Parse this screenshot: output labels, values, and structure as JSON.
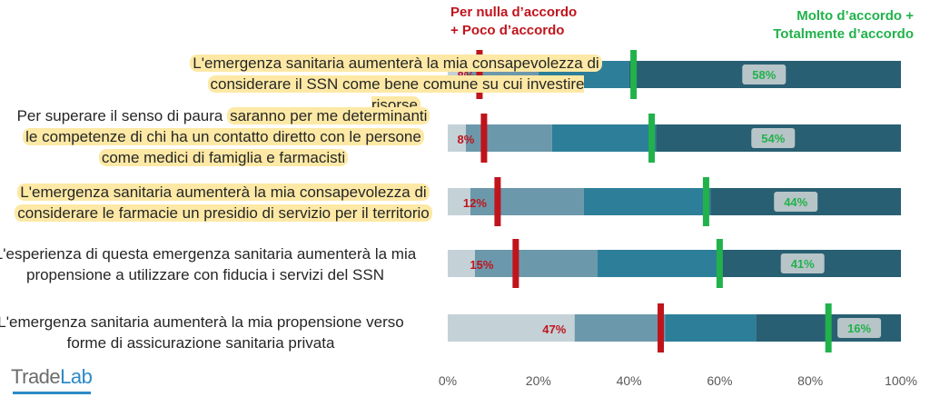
{
  "chart_data": {
    "type": "bar",
    "orientation": "horizontal",
    "stacked": true,
    "statements": [
      {
        "segments": [
          {
            "text": "L'emergenza sanitaria aumenterà la mia consapevolezza di",
            "highlight": true
          },
          {
            "text": "considerare il SSN come bene comune su cui investire risorse",
            "highlight": true
          }
        ],
        "disagree_pct": 8,
        "agree_pct": 58,
        "disagree_label": "8%",
        "agree_label": "58%",
        "stack": [
          4,
          16,
          20,
          60
        ],
        "red_marker": 7,
        "green_marker": 41
      },
      {
        "segments": [
          {
            "text": "Per superare il senso di paura",
            "highlight": false,
            "join": " "
          },
          {
            "text": "saranno per me determinanti",
            "highlight": true
          },
          {
            "text": "le competenze di chi ha un contatto diretto con le persone",
            "highlight": true
          },
          {
            "text": "come medici di famiglia e farmacisti",
            "highlight": true
          }
        ],
        "disagree_pct": 8,
        "agree_pct": 54,
        "disagree_label": "8%",
        "agree_label": "54%",
        "stack": [
          4,
          19,
          23,
          54
        ],
        "red_marker": 8,
        "green_marker": 45
      },
      {
        "segments": [
          {
            "text": "L'emergenza sanitaria aumenterà la mia consapevolezza di",
            "highlight": true
          },
          {
            "text": "considerare le farmacie un presidio di servizio per il territorio",
            "highlight": true
          }
        ],
        "disagree_pct": 12,
        "agree_pct": 44,
        "disagree_label": "12%",
        "agree_label": "44%",
        "stack": [
          5,
          25,
          28,
          42
        ],
        "red_marker": 11,
        "green_marker": 57
      },
      {
        "segments": [
          {
            "text": "L'esperienza di questa emergenza sanitaria aumenterà la mia",
            "highlight": false
          },
          {
            "text": "propensione a utilizzare con fiducia  i servizi del SSN",
            "highlight": false
          }
        ],
        "disagree_pct": 15,
        "agree_pct": 41,
        "disagree_label": "15%",
        "agree_label": "41%",
        "stack": [
          6,
          27,
          27,
          40
        ],
        "red_marker": 15,
        "green_marker": 60
      },
      {
        "segments": [
          {
            "text": "L'emergenza sanitaria aumenterà la mia propensione verso",
            "highlight": false
          },
          {
            "text": "forme di assicurazione sanitaria privata",
            "highlight": false
          }
        ],
        "disagree_pct": 47,
        "agree_pct": 16,
        "disagree_label": "47%",
        "agree_label": "16%",
        "stack": [
          28,
          20,
          20,
          32
        ],
        "red_marker": 47,
        "green_marker": 84
      }
    ],
    "header_left": [
      "Per nulla d’accordo",
      "+ Poco d’accordo"
    ],
    "header_right": [
      "Molto d’accordo +",
      "Totalmente d’accordo"
    ],
    "x_ticks": [
      "0%",
      "20%",
      "40%",
      "60%",
      "80%",
      "100%"
    ],
    "xlim": [
      0,
      100
    ],
    "grid": false
  },
  "logo": {
    "part1": "Trade",
    "part2": "Lab"
  },
  "colors": {
    "stack": [
      "#c4d2d8",
      "#6c98ab",
      "#2d7f99",
      "#285f72"
    ],
    "red_marker": "#c0141c",
    "green_marker": "#21b24b",
    "highlight": "#fde9a5",
    "agree_label_bg": "#b7c4c8"
  }
}
